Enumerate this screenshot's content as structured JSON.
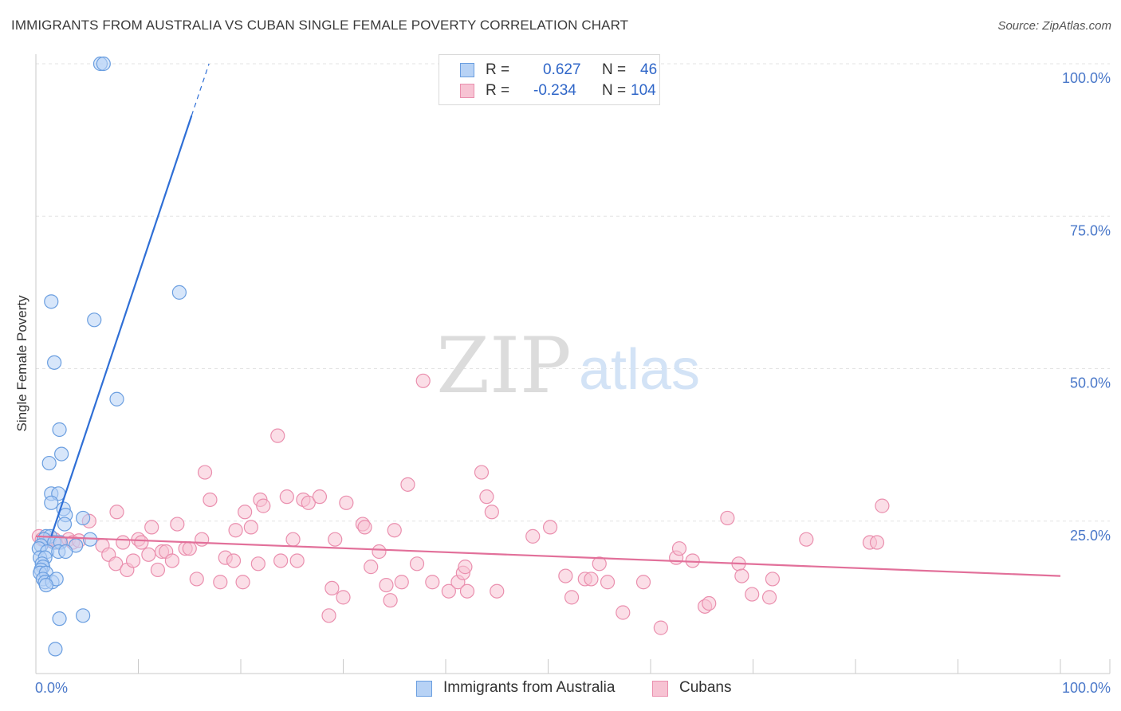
{
  "title": "IMMIGRANTS FROM AUSTRALIA VS CUBAN SINGLE FEMALE POVERTY CORRELATION CHART",
  "source": "Source: ZipAtlas.com",
  "watermark": {
    "zip": "ZIP",
    "atlas": "atlas"
  },
  "colors": {
    "blue_fill": "#b7d2f5",
    "blue_stroke": "#6a9ee0",
    "blue_line": "#2f6fd6",
    "pink_fill": "#f7c3d3",
    "pink_stroke": "#ea8fae",
    "pink_line": "#e2709a",
    "grid": "#e3e3e3",
    "axis_text": "#4a78c9"
  },
  "legend": {
    "rows": [
      {
        "r_label": "R =",
        "r_value": "0.627",
        "n_label": "N =",
        "n_value": "46"
      },
      {
        "r_label": "R =",
        "r_value": "-0.234",
        "n_label": "N =",
        "n_value": "104"
      }
    ]
  },
  "bottom_legend": {
    "series_a": "Immigrants from Australia",
    "series_b": "Cubans"
  },
  "chart_data": {
    "type": "scatter",
    "title": "IMMIGRANTS FROM AUSTRALIA VS CUBAN SINGLE FEMALE POVERTY CORRELATION CHART",
    "xlabel": "",
    "ylabel": "Single Female Poverty",
    "xlim": [
      0,
      100
    ],
    "ylim": [
      0,
      100
    ],
    "x_tick_labels": [
      "0.0%",
      "100.0%"
    ],
    "y_ticks": [
      25,
      50,
      75,
      100
    ],
    "y_tick_labels": [
      "25.0%",
      "50.0%",
      "75.0%",
      "100.0%"
    ],
    "grid": true,
    "series": [
      {
        "name": "Immigrants from Australia",
        "r": 0.627,
        "n": 46,
        "trend": {
          "x0": 1.5,
          "y0": 22.5,
          "x1": 15.2,
          "y1": 91.5,
          "dash_to_x": 16.9,
          "dash_to_y": 100
        },
        "points": [
          [
            6.3,
            100
          ],
          [
            6.6,
            100
          ],
          [
            1.5,
            61
          ],
          [
            5.7,
            58
          ],
          [
            14,
            62.5
          ],
          [
            1.8,
            51
          ],
          [
            7.9,
            45
          ],
          [
            2.3,
            40
          ],
          [
            2.5,
            36
          ],
          [
            1.3,
            34.5
          ],
          [
            1.5,
            29.5
          ],
          [
            2.2,
            29.5
          ],
          [
            1.5,
            28
          ],
          [
            2.7,
            27
          ],
          [
            2.9,
            26
          ],
          [
            4.6,
            25.5
          ],
          [
            2.8,
            24.5
          ],
          [
            1,
            22.5
          ],
          [
            1.4,
            22.5
          ],
          [
            0.8,
            22
          ],
          [
            5.3,
            22
          ],
          [
            1.8,
            21.5
          ],
          [
            0.5,
            21
          ],
          [
            2.4,
            21.5
          ],
          [
            3.9,
            21
          ],
          [
            0.3,
            20.5
          ],
          [
            1.1,
            20
          ],
          [
            2.2,
            20
          ],
          [
            2.9,
            20
          ],
          [
            0.4,
            19
          ],
          [
            0.9,
            19
          ],
          [
            0.6,
            18
          ],
          [
            0.7,
            17.5
          ],
          [
            0.5,
            17
          ],
          [
            0.4,
            16.5
          ],
          [
            1,
            16.5
          ],
          [
            0.7,
            15.5
          ],
          [
            0.9,
            15
          ],
          [
            1.6,
            15
          ],
          [
            2,
            15.5
          ],
          [
            1,
            14.5
          ],
          [
            2.3,
            9
          ],
          [
            4.6,
            9.5
          ],
          [
            1.9,
            4
          ]
        ]
      },
      {
        "name": "Cubans",
        "r": -0.234,
        "n": 104,
        "trend": {
          "x0": 0,
          "y0": 22.5,
          "x1": 100,
          "y1": 16
        },
        "points": [
          [
            0.3,
            22.5
          ],
          [
            0.6,
            22
          ],
          [
            1.3,
            21.8
          ],
          [
            1.8,
            22
          ],
          [
            2.2,
            21.5
          ],
          [
            3.2,
            22
          ],
          [
            3.6,
            21.5
          ],
          [
            4.2,
            21.8
          ],
          [
            5.2,
            25
          ],
          [
            6.5,
            21
          ],
          [
            7.1,
            19.5
          ],
          [
            7.8,
            18
          ],
          [
            7.9,
            26.5
          ],
          [
            8.5,
            21.5
          ],
          [
            8.9,
            17
          ],
          [
            9.5,
            18.5
          ],
          [
            10,
            22
          ],
          [
            10.3,
            21.5
          ],
          [
            11,
            19.5
          ],
          [
            11.3,
            24
          ],
          [
            11.9,
            17
          ],
          [
            12.3,
            20
          ],
          [
            12.7,
            20
          ],
          [
            13.3,
            18.5
          ],
          [
            13.8,
            24.5
          ],
          [
            14.6,
            20.5
          ],
          [
            15,
            20.5
          ],
          [
            15.7,
            15.5
          ],
          [
            16.2,
            22
          ],
          [
            16.5,
            33
          ],
          [
            17,
            28.5
          ],
          [
            18,
            15
          ],
          [
            18.5,
            19
          ],
          [
            19.3,
            18.5
          ],
          [
            19.5,
            23.5
          ],
          [
            20.2,
            15
          ],
          [
            20.4,
            26.5
          ],
          [
            21,
            24
          ],
          [
            21.7,
            18
          ],
          [
            21.9,
            28.5
          ],
          [
            22.2,
            27.5
          ],
          [
            23.6,
            39
          ],
          [
            23.9,
            18.5
          ],
          [
            24.5,
            29
          ],
          [
            25.1,
            22
          ],
          [
            25.5,
            18.5
          ],
          [
            26.1,
            28.5
          ],
          [
            26.6,
            28
          ],
          [
            27.7,
            29
          ],
          [
            28.6,
            9.5
          ],
          [
            28.9,
            14
          ],
          [
            29.2,
            22
          ],
          [
            30,
            12.5
          ],
          [
            30.3,
            28
          ],
          [
            31.9,
            24.5
          ],
          [
            32.1,
            24
          ],
          [
            32.7,
            17.5
          ],
          [
            33.5,
            20
          ],
          [
            34.2,
            14.5
          ],
          [
            34.6,
            12
          ],
          [
            35,
            23.5
          ],
          [
            35.7,
            15
          ],
          [
            36.3,
            31
          ],
          [
            37.2,
            18
          ],
          [
            37.8,
            48
          ],
          [
            38.7,
            15
          ],
          [
            40.3,
            13.5
          ],
          [
            41.2,
            15
          ],
          [
            41.7,
            16.5
          ],
          [
            41.9,
            17.5
          ],
          [
            42.1,
            13.5
          ],
          [
            43.5,
            33
          ],
          [
            44,
            29
          ],
          [
            44.5,
            26.5
          ],
          [
            45,
            13.5
          ],
          [
            48.5,
            22.5
          ],
          [
            50.2,
            24
          ],
          [
            51.7,
            16
          ],
          [
            52.3,
            12.5
          ],
          [
            53.6,
            15.5
          ],
          [
            54.2,
            15.5
          ],
          [
            55,
            18
          ],
          [
            55.8,
            15
          ],
          [
            57.3,
            10
          ],
          [
            59.3,
            15
          ],
          [
            61,
            7.5
          ],
          [
            62.5,
            19
          ],
          [
            62.8,
            20.5
          ],
          [
            64.1,
            18.5
          ],
          [
            65.3,
            11
          ],
          [
            65.7,
            11.5
          ],
          [
            67.5,
            25.5
          ],
          [
            68.6,
            18
          ],
          [
            68.9,
            16
          ],
          [
            69.9,
            13
          ],
          [
            71.6,
            12.5
          ],
          [
            71.9,
            15.5
          ],
          [
            75.2,
            22
          ],
          [
            81.4,
            21.5
          ],
          [
            82.1,
            21.5
          ],
          [
            82.6,
            27.5
          ]
        ]
      }
    ]
  }
}
